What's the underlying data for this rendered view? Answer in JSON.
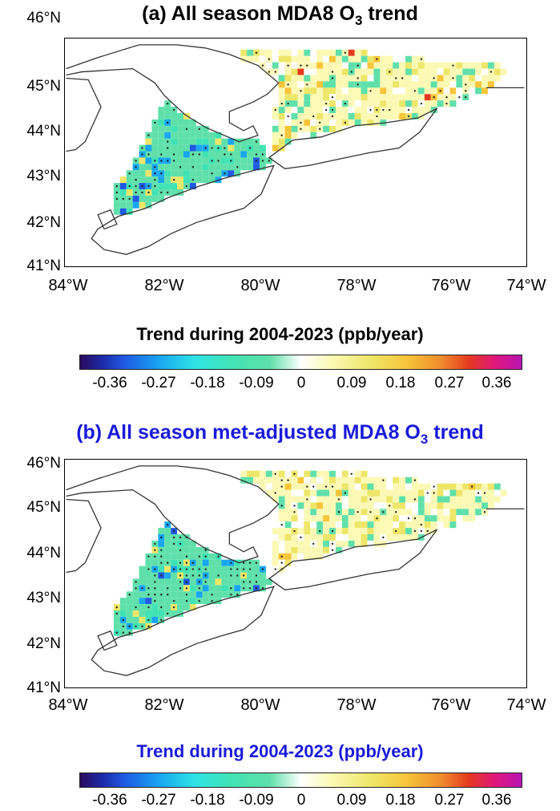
{
  "panels": [
    {
      "title_prefix": "(a) All season MDA8 O",
      "title_sub": "3",
      "title_suffix": " trend",
      "colorbar_title": "Trend during 2004-2023 (ppb/year)"
    },
    {
      "title_prefix": "(b) All season met-adjusted MDA8 O",
      "title_sub": "3",
      "title_suffix": " trend",
      "colorbar_title": "Trend during 2004-2023 (ppb/year)"
    }
  ],
  "axes": {
    "lat_ticks": [
      "46°N",
      "45°N",
      "44°N",
      "43°N",
      "42°N",
      "41°N"
    ],
    "lon_ticks": [
      "84°W",
      "82°W",
      "80°W",
      "78°W",
      "76°W",
      "74°W"
    ],
    "lat_range": [
      41,
      46
    ],
    "lon_range": [
      -84,
      -74
    ]
  },
  "colorbar": {
    "ticks": [
      "-0.36",
      "-0.27",
      "-0.18",
      "-0.09",
      "0",
      "0.09",
      "0.18",
      "0.27",
      "0.36"
    ],
    "range": [
      -0.405,
      0.405
    ]
  },
  "colors": {
    "negative": "#40e3b4",
    "neutral": "#ffffff",
    "positive": "#eee668",
    "title_b": "#1a1adb"
  }
}
